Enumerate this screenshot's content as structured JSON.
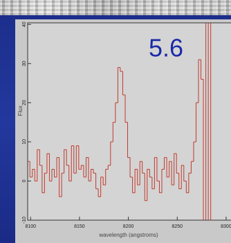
{
  "chart_data": {
    "type": "step",
    "annotation": "5.6",
    "x_label": "wavelength (angstroms)",
    "y_label": "Flux",
    "color": "#c0392b",
    "xlim": [
      8097,
      8305
    ],
    "ylim": [
      -10,
      40.4
    ],
    "xticks": [
      8100,
      8150,
      8200,
      8250,
      8300
    ],
    "yticks": [
      -10,
      0,
      10,
      20,
      30,
      40
    ],
    "x": [
      8098,
      8100.5,
      8103,
      8105.5,
      8108,
      8110.5,
      8113,
      8115.5,
      8118,
      8120.5,
      8123,
      8125.5,
      8128,
      8130.5,
      8133,
      8135.5,
      8138,
      8140.5,
      8143,
      8145.5,
      8148,
      8150.5,
      8153,
      8155.5,
      8158,
      8160.5,
      8163,
      8165.5,
      8168,
      8170.5,
      8173,
      8175.5,
      8178,
      8180.5,
      8183,
      8185.5,
      8188,
      8190.5,
      8193,
      8195.5,
      8198,
      8200.5,
      8203,
      8205.5,
      8208,
      8210.5,
      8213,
      8215.5,
      8218,
      8220.5,
      8223,
      8225.5,
      8228,
      8230.5,
      8233,
      8235.5,
      8238,
      8240.5,
      8243,
      8245.5,
      8248,
      8250.5,
      8253,
      8255.5,
      8258,
      8260.5,
      8263,
      8265.5,
      8268,
      8270.5,
      8273,
      8275.5,
      8278,
      8280.5,
      8283,
      8285.5
    ],
    "values": [
      5,
      1,
      3,
      0,
      8,
      4,
      -3,
      2,
      7,
      0,
      3,
      1,
      6,
      -4,
      2,
      8,
      4,
      0,
      9,
      2,
      9,
      3,
      4,
      1,
      6,
      0,
      3,
      2,
      -2,
      -4,
      1,
      -1,
      3,
      4,
      10,
      15,
      20,
      29,
      28,
      22,
      15,
      6,
      1,
      -3,
      3,
      -1,
      5,
      2,
      -5,
      3,
      1,
      -2,
      6,
      0,
      -3,
      3,
      6,
      1,
      5,
      -1,
      7,
      2,
      -2,
      4,
      0,
      -3,
      2,
      5,
      10,
      20,
      31,
      26,
      -15,
      45,
      -15,
      50
    ]
  }
}
